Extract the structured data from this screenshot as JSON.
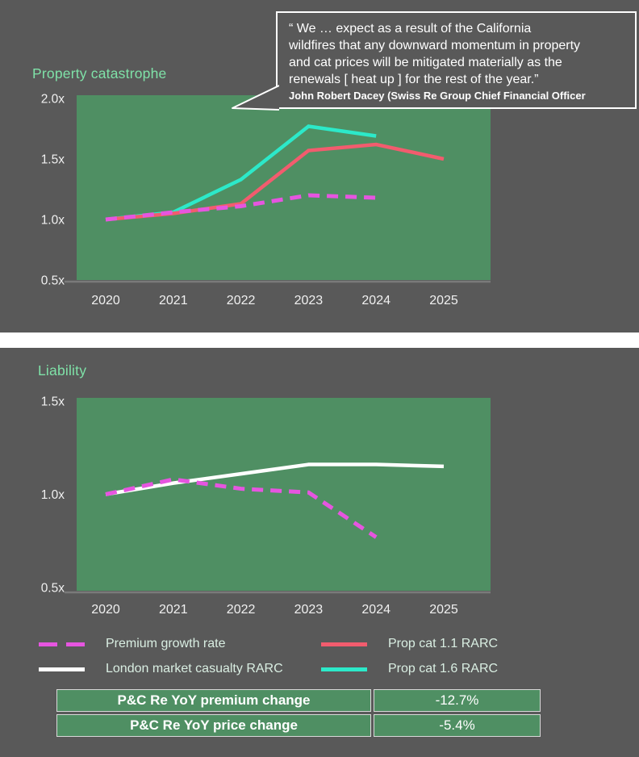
{
  "colors": {
    "panel_bg": "#595959",
    "page_bg": "#ffffff",
    "plot_bg": "#4f8f63",
    "title_text": "#7fe2a8",
    "tick_text": "#f0f0f0",
    "legend_text": "#d9eee2",
    "axis_line": "#7a7a7a",
    "quote_border": "#ffffff",
    "table_cell_bg": "#4f8f63",
    "table_text": "#ffffff"
  },
  "quote": {
    "lines": [
      "“ We … expect as a result of the California",
      "wildfires that any downward momentum in property",
      "and cat prices will be mitigated materially as the",
      "renewals [ heat up ] for the rest of the year.”"
    ],
    "attribution": "John Robert Dacey (Swiss Re Group Chief Financial Officer"
  },
  "chart_data": [
    {
      "type": "line",
      "title": "Property catastrophe",
      "x": [
        "2020",
        "2021",
        "2022",
        "2023",
        "2024",
        "2025"
      ],
      "ylim": [
        0.5,
        2.0
      ],
      "yticks": [
        2.0,
        1.5,
        1.0,
        0.5
      ],
      "ytick_labels": [
        "2.0x",
        "1.5x",
        "1.0x",
        "0.5x"
      ],
      "grid": false,
      "legend_position": "shared-below",
      "series": [
        {
          "name": "Premium growth rate",
          "values": [
            1.0,
            1.06,
            1.11,
            1.2,
            1.18,
            null
          ],
          "color": "#e655e0",
          "style": "dashed"
        },
        {
          "name": "Prop cat 1.1 RARC",
          "values": [
            1.0,
            1.05,
            1.13,
            1.57,
            1.62,
            1.5
          ],
          "color": "#f25c6e",
          "style": "solid"
        },
        {
          "name": "Prop cat 1.6 RARC",
          "values": [
            1.0,
            1.06,
            1.33,
            1.77,
            1.69,
            null
          ],
          "color": "#2ce9c9",
          "style": "solid"
        }
      ]
    },
    {
      "type": "line",
      "title": "Liability",
      "x": [
        "2020",
        "2021",
        "2022",
        "2023",
        "2024",
        "2025"
      ],
      "ylim": [
        0.5,
        1.5
      ],
      "yticks": [
        1.5,
        1.0,
        0.5
      ],
      "ytick_labels": [
        "1.5x",
        "1.0x",
        "0.5x"
      ],
      "grid": false,
      "legend_position": "shared-below",
      "series": [
        {
          "name": "Premium growth rate",
          "values": [
            1.0,
            1.08,
            1.03,
            1.01,
            0.77,
            null
          ],
          "color": "#e655e0",
          "style": "dashed"
        },
        {
          "name": "London market casualty RARC",
          "values": [
            1.0,
            1.06,
            1.11,
            1.16,
            1.16,
            1.15
          ],
          "color": "#ffffff",
          "style": "solid"
        }
      ]
    }
  ],
  "legend": {
    "items": [
      {
        "label": "Premium growth rate",
        "color": "#e655e0",
        "style": "dashed"
      },
      {
        "label": "Prop cat 1.1 RARC",
        "color": "#f25c6e",
        "style": "solid"
      },
      {
        "label": "London market casualty RARC",
        "color": "#ffffff",
        "style": "solid"
      },
      {
        "label": "Prop cat 1.6 RARC",
        "color": "#2ce9c9",
        "style": "solid"
      }
    ]
  },
  "table": {
    "rows": [
      {
        "label": "P&C Re YoY premium change",
        "value": "-12.7%"
      },
      {
        "label": "P&C Re YoY price change",
        "value": "-5.4%"
      }
    ]
  }
}
